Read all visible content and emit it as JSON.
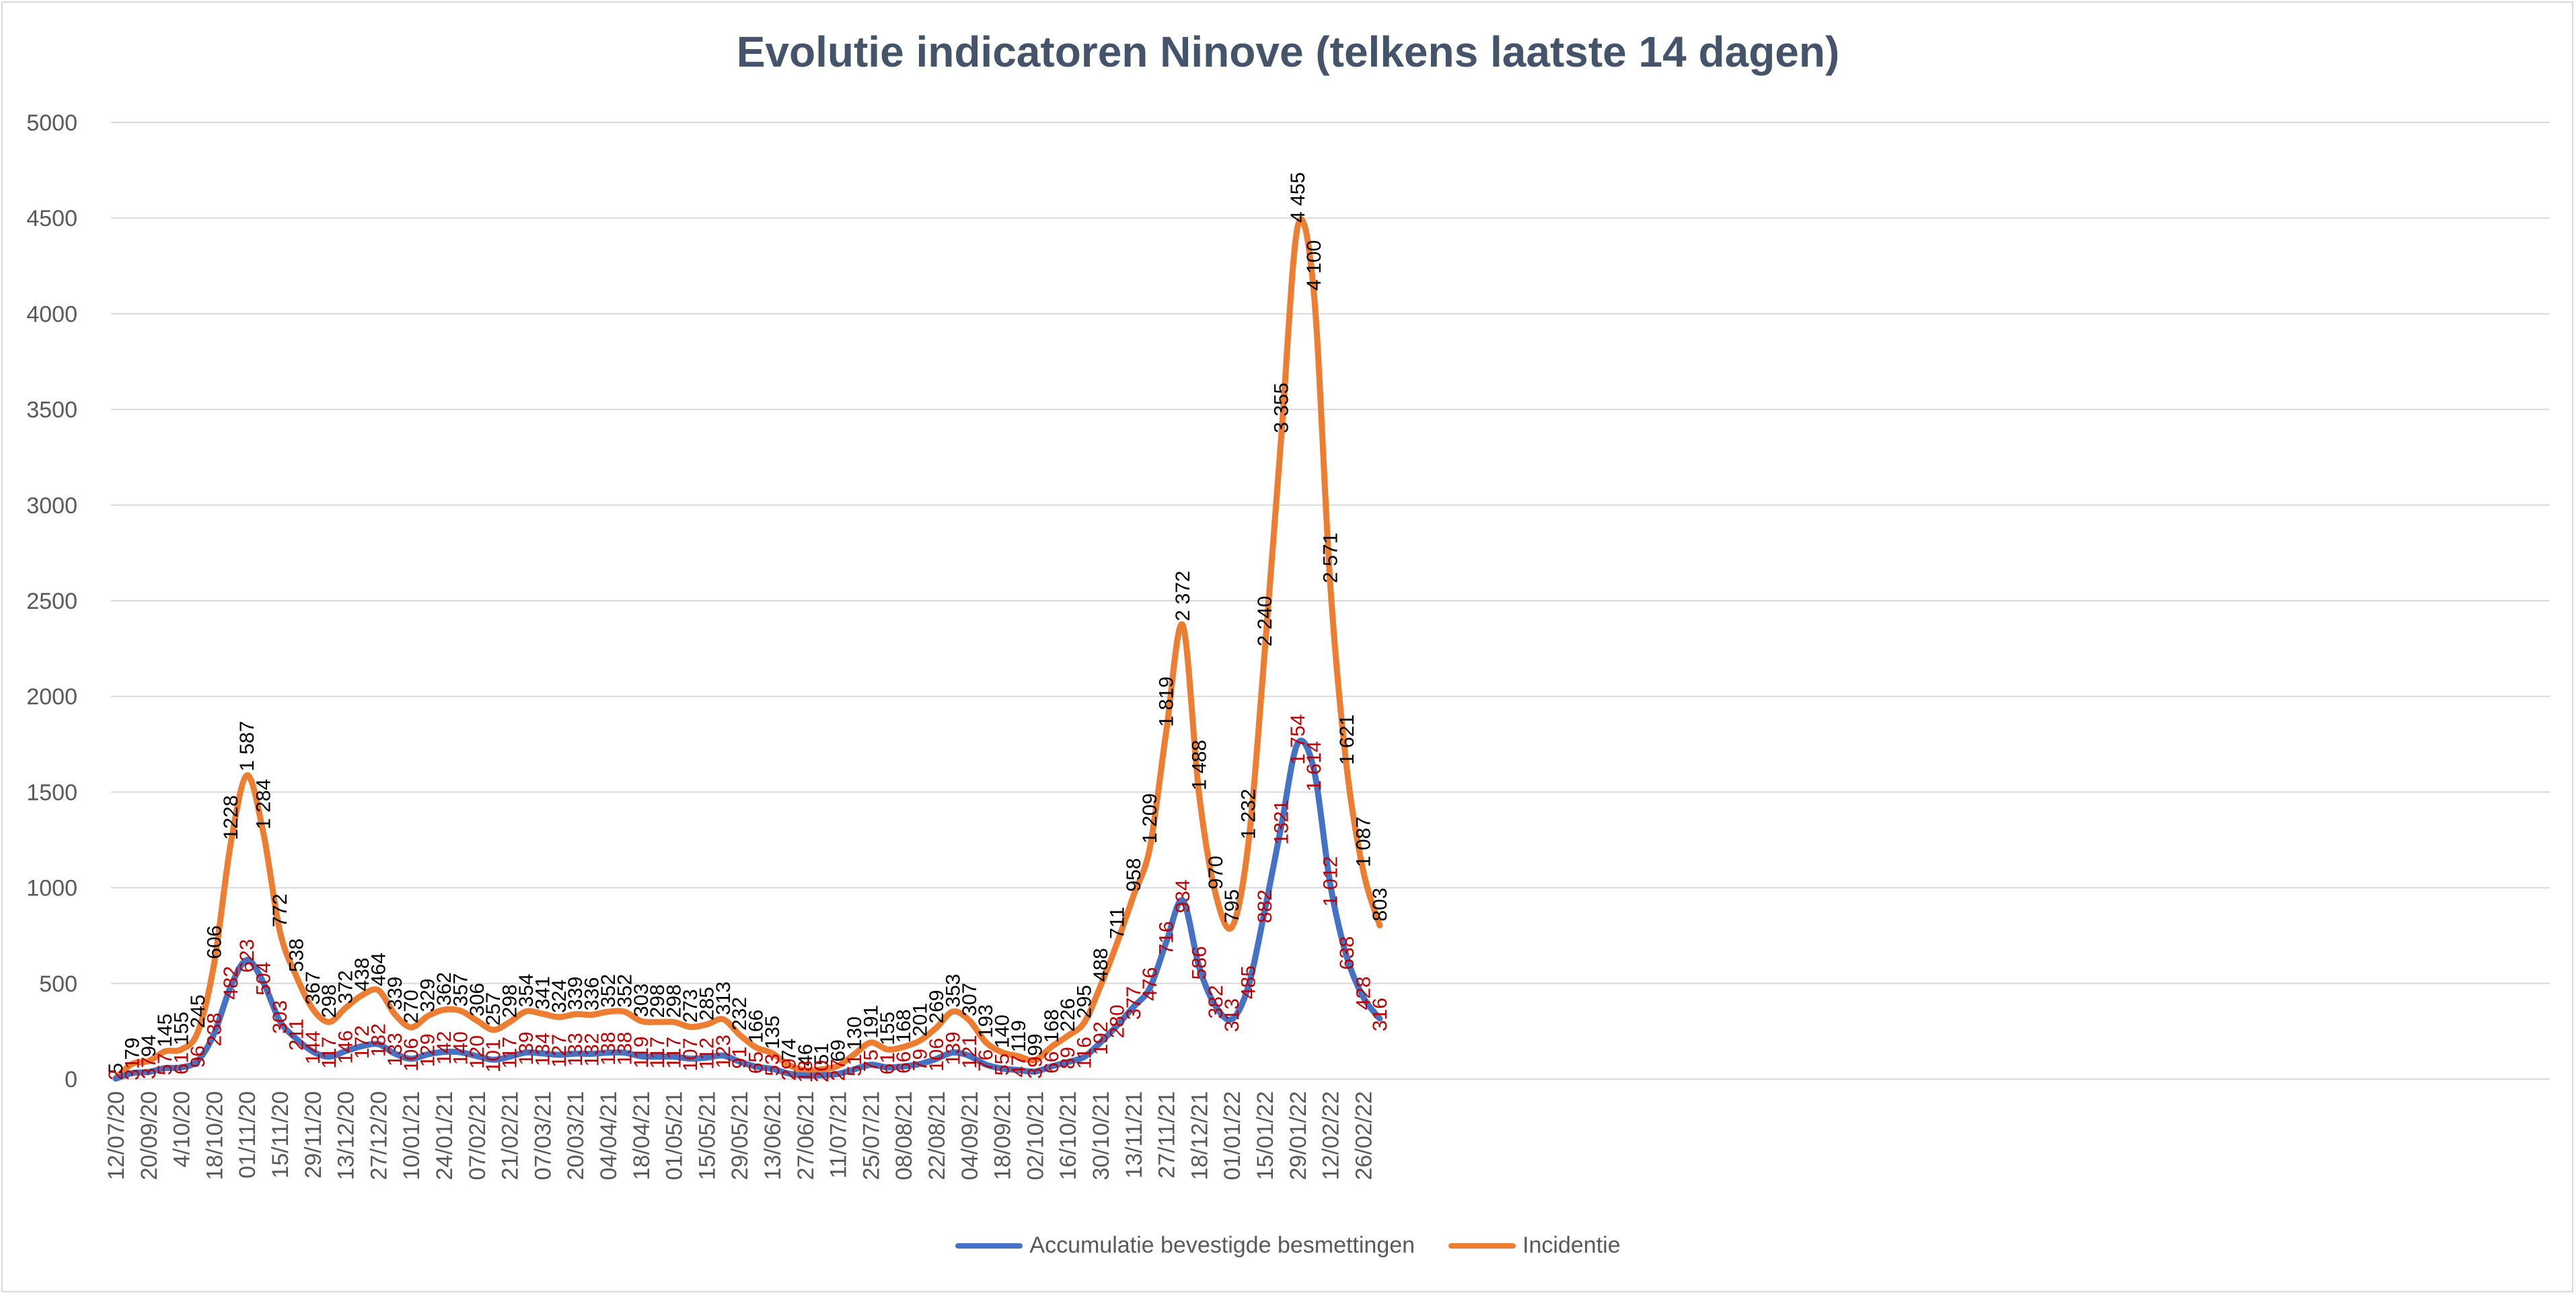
{
  "chart_data": {
    "type": "line",
    "title": "Evolutie indicatoren Ninove (telkens laatste 14 dagen)",
    "xlabel": "",
    "ylabel": "",
    "ylim": [
      0,
      5000
    ],
    "yticks": [
      "0",
      "500",
      "1000",
      "1500",
      "2000",
      "2500",
      "3000",
      "3500",
      "4000",
      "4500",
      "5000"
    ],
    "x_tick_labels": [
      "12/07/20",
      "20/09/20",
      "4/10/20",
      "18/10/20",
      "01/11/20",
      "15/11/20",
      "29/11/20",
      "13/12/20",
      "27/12/20",
      "10/01/21",
      "24/01/21",
      "07/02/21",
      "21/02/21",
      "07/03/21",
      "20/03/21",
      "04/04/21",
      "18/04/21",
      "01/05/21",
      "15/05/21",
      "29/05/21",
      "13/06/21",
      "27/06/21",
      "11/07/21",
      "25/07/21",
      "08/08/21",
      "22/08/21",
      "04/09/21",
      "18/09/21",
      "02/10/21",
      "16/10/21",
      "30/10/21",
      "13/11/21",
      "27/11/21",
      "18/12/21",
      "01/01/22",
      "15/01/22",
      "29/01/22",
      "12/02/22",
      "26/02/22"
    ],
    "series": [
      {
        "name": "Incidentie",
        "color": "#ed7d31",
        "values": [
          5,
          79,
          94,
          145,
          155,
          245,
          606,
          1228,
          1587,
          1284,
          772,
          538,
          367,
          298,
          372,
          438,
          464,
          339,
          270,
          329,
          362,
          357,
          306,
          257,
          298,
          354,
          341,
          324,
          339,
          336,
          352,
          352,
          303,
          298,
          298,
          273,
          285,
          313,
          232,
          166,
          135,
          74,
          46,
          51,
          69,
          130,
          191,
          155,
          168,
          201,
          269,
          353,
          307,
          193,
          140,
          119,
          99,
          168,
          226,
          295,
          488,
          711,
          958,
          1209,
          1819,
          2372,
          1488,
          970,
          795,
          1232,
          2240,
          3355,
          4455,
          4100,
          2571,
          1621,
          1087,
          803
        ],
        "labels": [
          "5",
          "79",
          "94",
          "145",
          "155",
          "245",
          "606",
          "1228",
          "1 587",
          "1 284",
          "772",
          "538",
          "367",
          "298",
          "372",
          "438",
          "464",
          "339",
          "270",
          "329",
          "362",
          "357",
          "306",
          "257",
          "298",
          "354",
          "341",
          "324",
          "339",
          "336",
          "352",
          "352",
          "303",
          "298",
          "298",
          "273",
          "285",
          "313",
          "232",
          "166",
          "135",
          "74",
          "46",
          "51",
          "69",
          "130",
          "191",
          "155",
          "168",
          "201",
          "269",
          "353",
          "307",
          "193",
          "140",
          "119",
          "99",
          "168",
          "226",
          "295",
          "488",
          "711",
          "958",
          "1 209",
          "1 819",
          "2 372",
          "1 488",
          "970",
          "795",
          "1 232",
          "2 240",
          "3 355",
          "4 455",
          "4 100",
          "2 571",
          "1 621",
          "1 087",
          "803"
        ]
      },
      {
        "name": "Accumulatie bevestigde besmettingen",
        "color": "#4472c4",
        "values": [
          2,
          31,
          37,
          57,
          61,
          96,
          238,
          482,
          623,
          504,
          303,
          211,
          144,
          117,
          146,
          172,
          182,
          133,
          106,
          129,
          142,
          140,
          120,
          101,
          117,
          139,
          134,
          127,
          133,
          132,
          138,
          138,
          119,
          117,
          117,
          107,
          112,
          123,
          91,
          65,
          53,
          29,
          18,
          20,
          27,
          51,
          75,
          61,
          66,
          79,
          106,
          139,
          121,
          76,
          55,
          47,
          39,
          66,
          89,
          116,
          192,
          280,
          377,
          476,
          716,
          934,
          586,
          382,
          313,
          485,
          882,
          1321,
          1754,
          1614,
          1012,
          638,
          428,
          316
        ],
        "labels": [
          "2",
          "31",
          "37",
          "57",
          "61",
          "96",
          "238",
          "482",
          "623",
          "504",
          "303",
          "211",
          "144",
          "117",
          "146",
          "172",
          "182",
          "133",
          "106",
          "129",
          "142",
          "140",
          "120",
          "101",
          "117",
          "139",
          "134",
          "127",
          "133",
          "132",
          "138",
          "138",
          "119",
          "117",
          "117",
          "107",
          "112",
          "123",
          "91",
          "65",
          "53",
          "29",
          "18",
          "20",
          "27",
          "51",
          "75",
          "61",
          "66",
          "79",
          "106",
          "139",
          "121",
          "76",
          "55",
          "47",
          "39",
          "66",
          "89",
          "116",
          "192",
          "280",
          "377",
          "476",
          "716",
          "934",
          "586",
          "382",
          "313",
          "485",
          "882",
          "1321",
          "1 754",
          "1 614",
          "1 012",
          "638",
          "428",
          "316"
        ]
      }
    ],
    "legend": [
      "Accumulatie bevestigde besmettingen",
      "Incidentie"
    ],
    "legend_position": "bottom",
    "grid": true
  }
}
